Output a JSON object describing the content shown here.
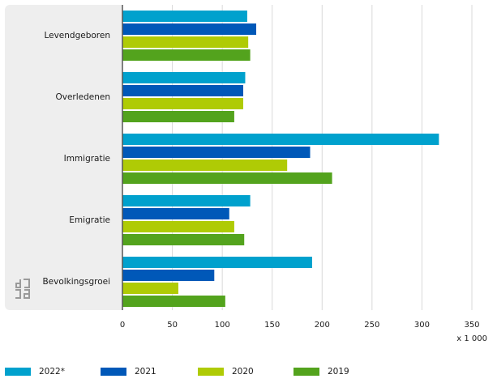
{
  "chart_data": {
    "type": "bar",
    "orientation": "horizontal",
    "categories": [
      "Levendgeboren",
      "Overledenen",
      "Immigratie",
      "Emigratie",
      "Bevolkingsgroei"
    ],
    "series": [
      {
        "name": "2022*",
        "color": "#00a1cd",
        "values": [
          125,
          123,
          317,
          128,
          190
        ]
      },
      {
        "name": "2021",
        "color": "#0058b8",
        "values": [
          134,
          121,
          188,
          107,
          92
        ]
      },
      {
        "name": "2020",
        "color": "#afcb05",
        "values": [
          126,
          121,
          165,
          112,
          56
        ]
      },
      {
        "name": "2019",
        "color": "#53a31d",
        "values": [
          128,
          112,
          210,
          122,
          103
        ]
      }
    ],
    "xlim": [
      0,
      350
    ],
    "xticks": [
      0,
      50,
      100,
      150,
      200,
      250,
      300,
      350
    ],
    "unit_label": "x 1 000",
    "grid": true,
    "legend_position": "bottom"
  },
  "logo": {
    "name": "cbs-logo-icon"
  }
}
